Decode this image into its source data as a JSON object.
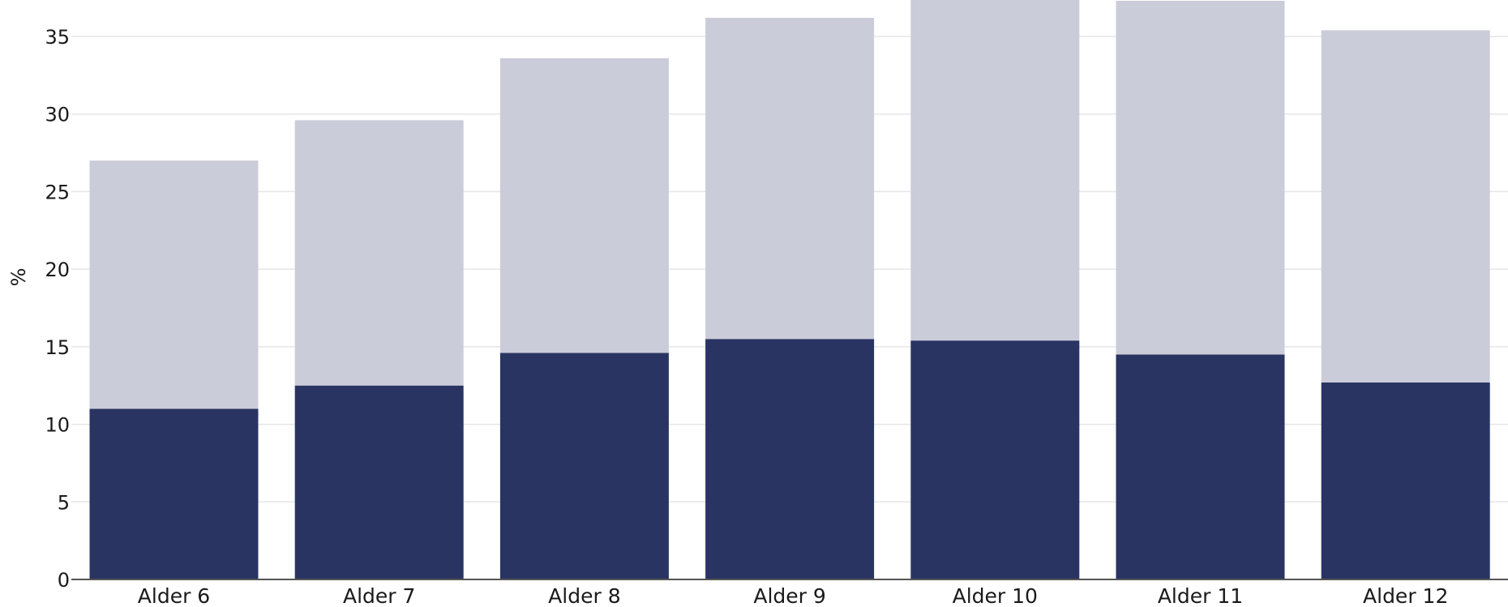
{
  "chart_data": {
    "type": "bar",
    "stacked": true,
    "categories": [
      "Alder 6",
      "Alder 7",
      "Alder 8",
      "Alder 9",
      "Alder 10",
      "Alder 11",
      "Alder 12"
    ],
    "series": [
      {
        "color": "#293462",
        "values": [
          11.0,
          12.5,
          14.6,
          15.5,
          15.4,
          14.5,
          12.7
        ]
      },
      {
        "color": "#cbccd9",
        "values": [
          16.0,
          17.1,
          19.0,
          20.7,
          22.0,
          22.8,
          22.7
        ]
      }
    ],
    "ylabel": "%",
    "ylim": [
      0,
      37
    ],
    "yticks": [
      0,
      5,
      10,
      15,
      20,
      25,
      30,
      35
    ],
    "grid": true
  }
}
